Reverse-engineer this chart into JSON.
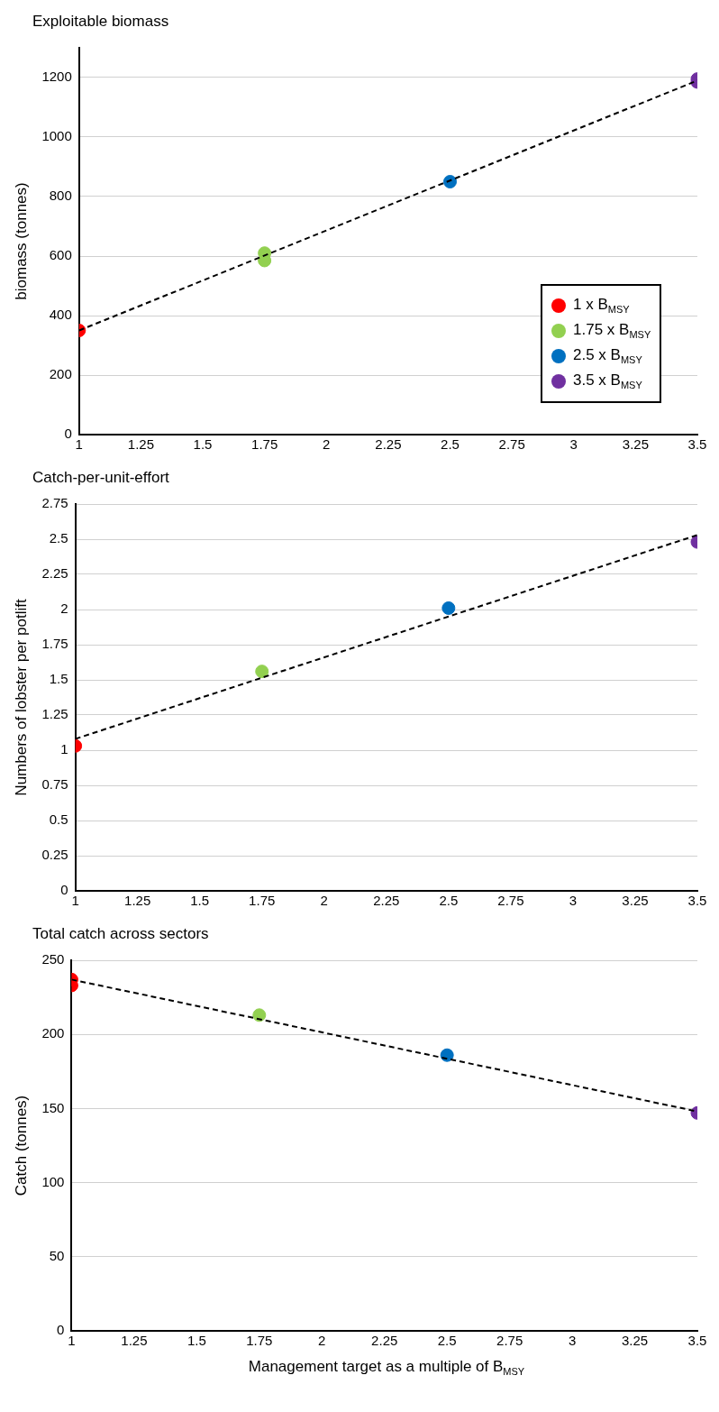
{
  "chart_data": [
    {
      "type": "scatter",
      "title": "Exploitable biomass",
      "ylabel": "biomass (tonnes)",
      "xlim": [
        1,
        3.5
      ],
      "xticks": [
        1,
        1.25,
        1.5,
        1.75,
        2,
        2.25,
        2.5,
        2.75,
        3,
        3.25,
        3.5
      ],
      "ylim": [
        0,
        1300
      ],
      "yticks": [
        0,
        200,
        400,
        600,
        800,
        1000,
        1200
      ],
      "grid": "y",
      "legend": "bottom right",
      "marker": "circle",
      "series": [
        {
          "name": "1 x B$_{MSY}$",
          "color": "#ff0000",
          "x": [
            1
          ],
          "values": [
            350
          ]
        },
        {
          "name": "1.75 x B$_{MSY}$",
          "color": "#92d050",
          "x": [
            1.75,
            1.75
          ],
          "values": [
            610,
            585
          ]
        },
        {
          "name": "2.5 x B$_{MSY}$",
          "color": "#0070c0",
          "x": [
            2.5
          ],
          "values": [
            850
          ]
        },
        {
          "name": "3.5 x B$_{MSY}$",
          "color": "#7030a0",
          "x": [
            3.5,
            3.5
          ],
          "values": [
            1195,
            1185
          ]
        },
        {
          "type": "line",
          "color": "#000000",
          "line_style": "dashed",
          "marker": "none",
          "x": [
            1,
            3.5
          ],
          "values": [
            350,
            1190
          ]
        }
      ]
    },
    {
      "type": "scatter",
      "title": "Catch-per-unit-effort",
      "ylabel": "Numbers of lobster per potlift",
      "xlim": [
        1,
        3.5
      ],
      "xticks": [
        1,
        1.25,
        1.5,
        1.75,
        2,
        2.25,
        2.5,
        2.75,
        3,
        3.25,
        3.5
      ],
      "ylim": [
        0,
        2.75
      ],
      "yticks": [
        0,
        0.25,
        0.5,
        0.75,
        1,
        1.25,
        1.5,
        1.75,
        2,
        2.25,
        2.5,
        2.75
      ],
      "grid": "y",
      "marker": "circle",
      "series": [
        {
          "color": "#ff0000",
          "x": [
            1
          ],
          "values": [
            1.03
          ]
        },
        {
          "color": "#92d050",
          "x": [
            1.75
          ],
          "values": [
            1.56
          ]
        },
        {
          "color": "#0070c0",
          "x": [
            2.5
          ],
          "values": [
            2.01
          ]
        },
        {
          "color": "#7030a0",
          "x": [
            3.5
          ],
          "values": [
            2.48
          ]
        },
        {
          "type": "line",
          "color": "#000000",
          "line_style": "dashed",
          "marker": "none",
          "x": [
            1,
            3.5
          ],
          "values": [
            1.08,
            2.53
          ]
        }
      ]
    },
    {
      "type": "scatter",
      "title": "Total catch across sectors",
      "ylabel": "Catch (tonnes)",
      "xlabel": "Management target as a multiple of B$_{MSY}$",
      "xlim": [
        1,
        3.5
      ],
      "xticks": [
        1,
        1.25,
        1.5,
        1.75,
        2,
        2.25,
        2.5,
        2.75,
        3,
        3.25,
        3.5
      ],
      "ylim": [
        0,
        250
      ],
      "yticks": [
        0,
        50,
        100,
        150,
        200,
        250
      ],
      "grid": "y",
      "marker": "circle",
      "series": [
        {
          "color": "#ff0000",
          "x": [
            1,
            1
          ],
          "values": [
            237,
            233
          ]
        },
        {
          "color": "#92d050",
          "x": [
            1.75
          ],
          "values": [
            213
          ]
        },
        {
          "color": "#0070c0",
          "x": [
            2.5
          ],
          "values": [
            186
          ]
        },
        {
          "color": "#7030a0",
          "x": [
            3.5
          ],
          "values": [
            147
          ]
        },
        {
          "type": "line",
          "color": "#000000",
          "line_style": "dashed",
          "marker": "none",
          "x": [
            1,
            3.5
          ],
          "values": [
            237,
            148
          ]
        }
      ]
    }
  ]
}
